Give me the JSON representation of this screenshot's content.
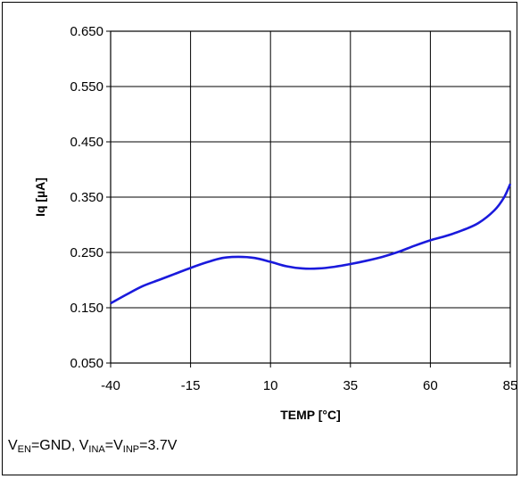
{
  "chart_data": {
    "type": "line",
    "title": "",
    "xlabel": "TEMP [°C]",
    "ylabel": "Iq [µA]",
    "xlim": [
      -40,
      85
    ],
    "ylim": [
      0.05,
      0.65
    ],
    "x_ticks": [
      -40,
      -15,
      10,
      35,
      60,
      85
    ],
    "x_tick_labels": [
      "-40",
      "-15",
      "10",
      "35",
      "60",
      "85"
    ],
    "y_ticks": [
      0.05,
      0.15,
      0.25,
      0.35,
      0.45,
      0.55,
      0.65
    ],
    "y_tick_labels": [
      "0.050",
      "0.150",
      "0.250",
      "0.350",
      "0.450",
      "0.550",
      "0.650"
    ],
    "grid": true,
    "series": [
      {
        "color": "#1a1adc",
        "x": [
          -40,
          -35,
          -30,
          -25,
          -20,
          -15,
          -10,
          -5,
          0,
          5,
          10,
          15,
          20,
          25,
          30,
          35,
          40,
          45,
          50,
          55,
          60,
          65,
          70,
          75,
          80,
          83,
          85
        ],
        "y": [
          0.158,
          0.174,
          0.189,
          0.2,
          0.211,
          0.222,
          0.232,
          0.24,
          0.242,
          0.24,
          0.233,
          0.225,
          0.221,
          0.221,
          0.224,
          0.229,
          0.235,
          0.242,
          0.251,
          0.262,
          0.272,
          0.28,
          0.29,
          0.303,
          0.326,
          0.349,
          0.374
        ]
      }
    ]
  },
  "note": {
    "v1": "V",
    "s1": "EN",
    "t1": "=GND, V",
    "s2": "INA",
    "t2": "=V",
    "s3": "INP",
    "t3": "=3.7V"
  }
}
